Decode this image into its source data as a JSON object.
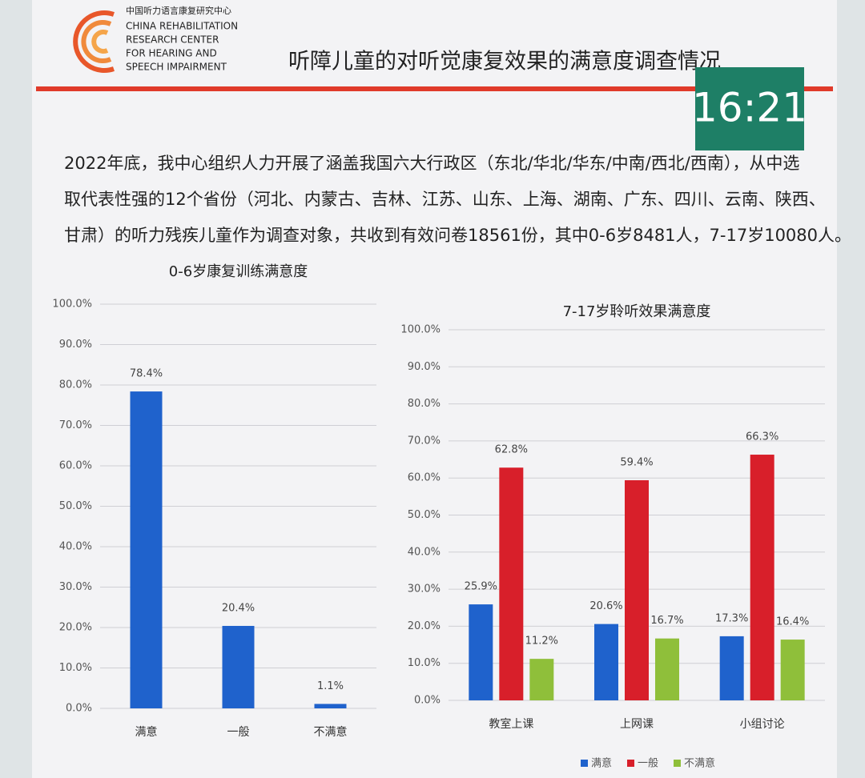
{
  "logo": {
    "name_cn": "中国听力语言康复研究中心",
    "name_en": [
      "CHINA REHABILITATION",
      "RESEARCH CENTER",
      "FOR HEARING AND",
      "SPEECH IMPAIRMENT"
    ]
  },
  "title": "听障儿童的对听觉康复效果的满意度调查情况",
  "clock": "16:21",
  "intro": [
    "2022年底，我中心组织人力开展了涵盖我国六大行政区（东北/华北/华东/中南/西北/西南），从中选",
    "取代表性强的12个省份（河北、内蒙古、吉林、江苏、山东、上海、湖南、广东、四川、云南、陕西、",
    "甘肃）的听力残疾儿童作为调查对象，共收到有效问卷18561份，其中0-6岁8481人，7-17岁10080人。"
  ],
  "chart_data": [
    {
      "type": "bar",
      "title": "0-6岁康复训练满意度",
      "categories": [
        "满意",
        "一般",
        "不满意"
      ],
      "values": [
        78.4,
        20.4,
        1.1
      ],
      "value_labels": [
        "78.4%",
        "20.4%",
        "1.1%"
      ],
      "color": "#1f62cc",
      "ylim": [
        0,
        100
      ],
      "yticks": [
        {
          "value": 0,
          "label": "0.0%"
        },
        {
          "value": 10,
          "label": "10.0%"
        },
        {
          "value": 20,
          "label": "20.0%"
        },
        {
          "value": 30,
          "label": "30.0%"
        },
        {
          "value": 40,
          "label": "40.0%"
        },
        {
          "value": 50,
          "label": "50.0%"
        },
        {
          "value": 60,
          "label": "60.0%"
        },
        {
          "value": 70,
          "label": "70.0%"
        },
        {
          "value": 80,
          "label": "80.0%"
        },
        {
          "value": 90,
          "label": "90.0%"
        },
        {
          "value": 100,
          "label": "100.0%"
        }
      ],
      "grid": true
    },
    {
      "type": "bar",
      "title": "7-17岁聆听效果满意度",
      "categories": [
        "教室上课",
        "上网课",
        "小组讨论"
      ],
      "series": [
        {
          "name": "满意",
          "color": "#1f62cc",
          "values": [
            25.9,
            20.6,
            17.3
          ],
          "value_labels": [
            "25.9%",
            "20.6%",
            "17.3%"
          ]
        },
        {
          "name": "一般",
          "color": "#d81f2a",
          "values": [
            62.8,
            59.4,
            66.3
          ],
          "value_labels": [
            "62.8%",
            "59.4%",
            "66.3%"
          ]
        },
        {
          "name": "不满意",
          "color": "#8fbf3a",
          "values": [
            11.2,
            16.7,
            16.4
          ],
          "value_labels": [
            "11.2%",
            "16.7%",
            "16.4%"
          ]
        }
      ],
      "ylim": [
        0,
        100
      ],
      "yticks": [
        {
          "value": 0,
          "label": "0.0%"
        },
        {
          "value": 10,
          "label": "10.0%"
        },
        {
          "value": 20,
          "label": "20.0%"
        },
        {
          "value": 30,
          "label": "30.0%"
        },
        {
          "value": 40,
          "label": "40.0%"
        },
        {
          "value": 50,
          "label": "50.0%"
        },
        {
          "value": 60,
          "label": "60.0%"
        },
        {
          "value": 70,
          "label": "70.0%"
        },
        {
          "value": 80,
          "label": "80.0%"
        },
        {
          "value": 90,
          "label": "90.0%"
        },
        {
          "value": 100,
          "label": "100.0%"
        }
      ],
      "grid": true,
      "legend": "bottom"
    }
  ]
}
